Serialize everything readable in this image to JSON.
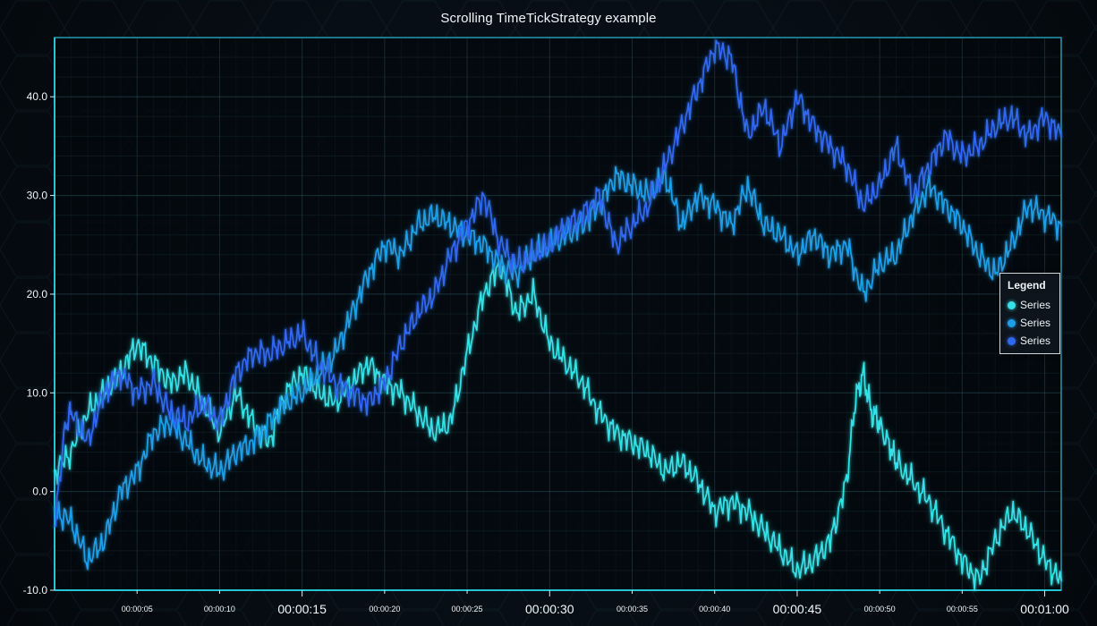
{
  "chart_title": "Scrolling TimeTickStrategy example",
  "legend": {
    "title": "Legend",
    "items": [
      {
        "label": "Series",
        "color": "#35e0e6"
      },
      {
        "label": "Series",
        "color": "#1f9ee8"
      },
      {
        "label": "Series",
        "color": "#3068ef"
      }
    ]
  },
  "chart_data": {
    "type": "line",
    "title": "Scrolling TimeTickStrategy example",
    "xlabel": "",
    "ylabel": "",
    "x_unit": "seconds",
    "xlim": [
      0,
      61
    ],
    "ylim": [
      -10,
      46
    ],
    "y_ticks": [
      -10,
      0,
      10,
      20,
      30,
      40
    ],
    "y_tick_labels": [
      "-10.0",
      "0.0",
      "10.0",
      "20.0",
      "30.0",
      "40.0"
    ],
    "x_ticks": [
      5,
      10,
      15,
      20,
      25,
      30,
      35,
      40,
      45,
      50,
      55,
      60
    ],
    "x_tick_labels": [
      "00:00:05",
      "00:00:10",
      "00:00:15",
      "00:00:20",
      "00:00:25",
      "00:00:30",
      "00:00:35",
      "00:00:40",
      "00:00:45",
      "00:00:50",
      "00:00:55",
      "00:01:00"
    ],
    "major_x_ticks": [
      15,
      30,
      45,
      60
    ],
    "grid": true,
    "legend_position": "right",
    "series": [
      {
        "name": "Series",
        "color": "#35e0e6",
        "points": [
          [
            0,
            2
          ],
          [
            1,
            4
          ],
          [
            2,
            8
          ],
          [
            3,
            10
          ],
          [
            4,
            12
          ],
          [
            5,
            15
          ],
          [
            6,
            13
          ],
          [
            7,
            11
          ],
          [
            8,
            12
          ],
          [
            9,
            9
          ],
          [
            10,
            6
          ],
          [
            11,
            10
          ],
          [
            12,
            7
          ],
          [
            13,
            5
          ],
          [
            14,
            10
          ],
          [
            15,
            12
          ],
          [
            16,
            10
          ],
          [
            17,
            9
          ],
          [
            18,
            11
          ],
          [
            19,
            13
          ],
          [
            20,
            11
          ],
          [
            21,
            10
          ],
          [
            22,
            8
          ],
          [
            23,
            6
          ],
          [
            24,
            7
          ],
          [
            25,
            14
          ],
          [
            26,
            20
          ],
          [
            27,
            23
          ],
          [
            28,
            18
          ],
          [
            29,
            20
          ],
          [
            30,
            15
          ],
          [
            31,
            13
          ],
          [
            32,
            11
          ],
          [
            33,
            8
          ],
          [
            34,
            6
          ],
          [
            35,
            5
          ],
          [
            36,
            4
          ],
          [
            37,
            2
          ],
          [
            38,
            3
          ],
          [
            39,
            1
          ],
          [
            40,
            -2
          ],
          [
            41,
            -1
          ],
          [
            42,
            -2
          ],
          [
            43,
            -4
          ],
          [
            44,
            -6
          ],
          [
            45,
            -8
          ],
          [
            46,
            -7
          ],
          [
            47,
            -5
          ],
          [
            48,
            1
          ],
          [
            48.5,
            9
          ],
          [
            49,
            12
          ],
          [
            49.5,
            8
          ],
          [
            50,
            7
          ],
          [
            50.7,
            4
          ],
          [
            51,
            3
          ],
          [
            52,
            1
          ],
          [
            53,
            -1
          ],
          [
            54,
            -4
          ],
          [
            55,
            -7
          ],
          [
            56,
            -9
          ],
          [
            57,
            -5
          ],
          [
            58,
            -2
          ],
          [
            59,
            -4
          ],
          [
            60,
            -7
          ],
          [
            61,
            -9
          ]
        ]
      },
      {
        "name": "Series",
        "color": "#1f9ee8",
        "points": [
          [
            0,
            -2
          ],
          [
            1,
            -3
          ],
          [
            2,
            -7
          ],
          [
            3,
            -5
          ],
          [
            4,
            0
          ],
          [
            5,
            2
          ],
          [
            6,
            6
          ],
          [
            7,
            7
          ],
          [
            8,
            5
          ],
          [
            9,
            3
          ],
          [
            10,
            2
          ],
          [
            11,
            4
          ],
          [
            12,
            5
          ],
          [
            13,
            7
          ],
          [
            14,
            9
          ],
          [
            15,
            10
          ],
          [
            16,
            12
          ],
          [
            17,
            14
          ],
          [
            18,
            18
          ],
          [
            19,
            22
          ],
          [
            20,
            25
          ],
          [
            21,
            24
          ],
          [
            22,
            27
          ],
          [
            23,
            28
          ],
          [
            24,
            27
          ],
          [
            25,
            26
          ],
          [
            26,
            25
          ],
          [
            27,
            23
          ],
          [
            28,
            22
          ],
          [
            29,
            24
          ],
          [
            30,
            25
          ],
          [
            31,
            26
          ],
          [
            32,
            27
          ],
          [
            33,
            29
          ],
          [
            34,
            32
          ],
          [
            35,
            31
          ],
          [
            36,
            30
          ],
          [
            37,
            32
          ],
          [
            38,
            27
          ],
          [
            39,
            30
          ],
          [
            40,
            29
          ],
          [
            41,
            27
          ],
          [
            42,
            31
          ],
          [
            43,
            27
          ],
          [
            44,
            26
          ],
          [
            45,
            24
          ],
          [
            46,
            26
          ],
          [
            47,
            24
          ],
          [
            48,
            25
          ],
          [
            49,
            20
          ],
          [
            50,
            23
          ],
          [
            51,
            24
          ],
          [
            52,
            28
          ],
          [
            53,
            31
          ],
          [
            54,
            29
          ],
          [
            55,
            27
          ],
          [
            56,
            24
          ],
          [
            57,
            22
          ],
          [
            58,
            25
          ],
          [
            59,
            29
          ],
          [
            60,
            28
          ],
          [
            61,
            27
          ]
        ]
      },
      {
        "name": "Series",
        "color": "#3068ef",
        "points": [
          [
            0,
            -3
          ],
          [
            0.7,
            7
          ],
          [
            1,
            8
          ],
          [
            2,
            5
          ],
          [
            3,
            10
          ],
          [
            4,
            12
          ],
          [
            5,
            10
          ],
          [
            6,
            11
          ],
          [
            7,
            8
          ],
          [
            8,
            7
          ],
          [
            9,
            9
          ],
          [
            10,
            7
          ],
          [
            11,
            12
          ],
          [
            12,
            14
          ],
          [
            13,
            14
          ],
          [
            14,
            15
          ],
          [
            15,
            16
          ],
          [
            16,
            13
          ],
          [
            17,
            11
          ],
          [
            18,
            10
          ],
          [
            19,
            9
          ],
          [
            20,
            11
          ],
          [
            21,
            15
          ],
          [
            22,
            18
          ],
          [
            23,
            20
          ],
          [
            24,
            24
          ],
          [
            25,
            27
          ],
          [
            26,
            30
          ],
          [
            27,
            25
          ],
          [
            28,
            23
          ],
          [
            29,
            24
          ],
          [
            30,
            25
          ],
          [
            31,
            27
          ],
          [
            32,
            28
          ],
          [
            33,
            30
          ],
          [
            34,
            25
          ],
          [
            35,
            27
          ],
          [
            36,
            29
          ],
          [
            37,
            33
          ],
          [
            38,
            37
          ],
          [
            39,
            41
          ],
          [
            40,
            45
          ],
          [
            41,
            44
          ],
          [
            42,
            36
          ],
          [
            43,
            39
          ],
          [
            44,
            35
          ],
          [
            45,
            40
          ],
          [
            46,
            37
          ],
          [
            47,
            35
          ],
          [
            48,
            33
          ],
          [
            49,
            29
          ],
          [
            50,
            31
          ],
          [
            51,
            35
          ],
          [
            52,
            30
          ],
          [
            53,
            33
          ],
          [
            54,
            36
          ],
          [
            55,
            34
          ],
          [
            56,
            35
          ],
          [
            57,
            37
          ],
          [
            58,
            38
          ],
          [
            59,
            36
          ],
          [
            60,
            38
          ],
          [
            61,
            36
          ]
        ]
      }
    ]
  }
}
